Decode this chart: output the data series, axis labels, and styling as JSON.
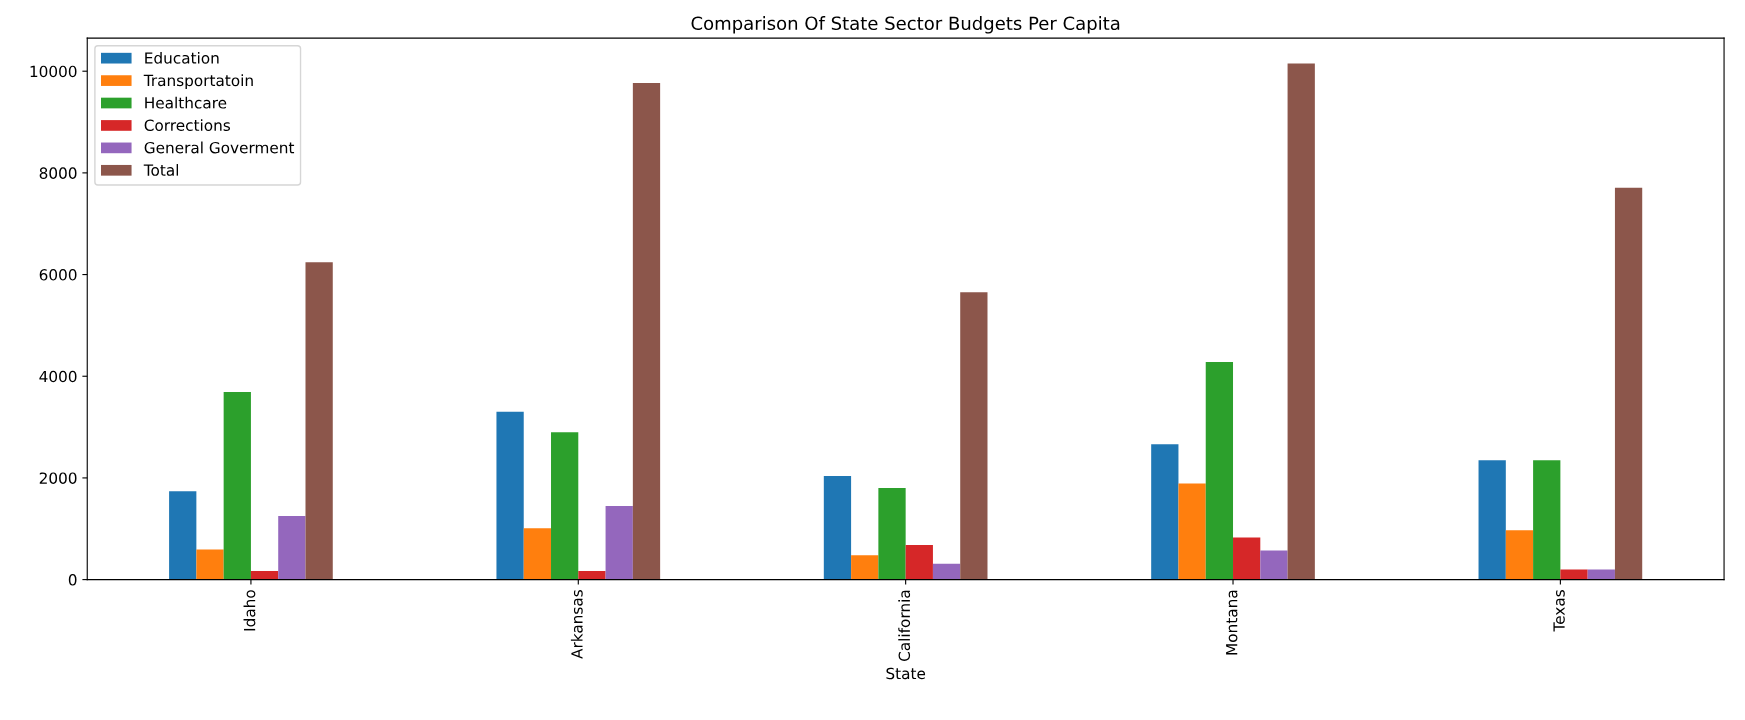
{
  "chart_data": {
    "type": "bar",
    "title": "Comparison Of State Sector Budgets Per Capita",
    "xlabel": "State",
    "categories": [
      "Idaho",
      "Arkansas",
      "California",
      "Montana",
      "Texas"
    ],
    "series": [
      {
        "name": "Education",
        "color": "#1f77b4",
        "values": [
          1740,
          3300,
          2040,
          2660,
          2350
        ]
      },
      {
        "name": "Transportatoin",
        "color": "#ff7f0e",
        "values": [
          590,
          1010,
          480,
          1890,
          970
        ]
      },
      {
        "name": "Healthcare",
        "color": "#2ca02c",
        "values": [
          3690,
          2900,
          1800,
          4280,
          2350
        ]
      },
      {
        "name": "Corrections",
        "color": "#d62728",
        "values": [
          170,
          170,
          680,
          830,
          200
        ]
      },
      {
        "name": "General Goverment",
        "color": "#9467bd",
        "values": [
          1250,
          1450,
          310,
          570,
          200
        ]
      },
      {
        "name": "Total",
        "color": "#8c564b",
        "values": [
          6240,
          9770,
          5650,
          10150,
          7710
        ]
      }
    ],
    "ylim": [
      0,
      10650
    ],
    "yticks": [
      0,
      2000,
      4000,
      6000,
      8000,
      10000
    ],
    "grid": false,
    "legend": "top left"
  }
}
